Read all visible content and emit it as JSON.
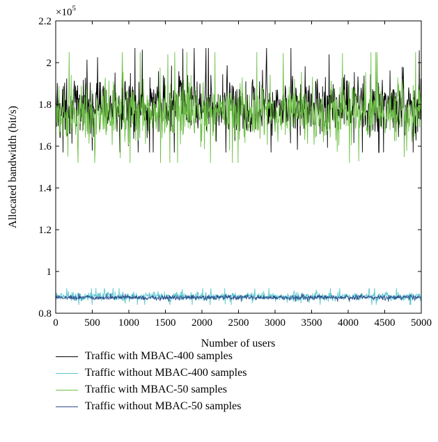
{
  "chart_data": {
    "type": "line",
    "title": "",
    "xlabel": "Number of users",
    "ylabel": "Allocated bandwidth (bit/s)",
    "y_multiplier_label": "×10",
    "y_multiplier_exponent": "5",
    "xlim": [
      0,
      5000
    ],
    "ylim": [
      0.8,
      2.2
    ],
    "x_ticks": [
      0,
      500,
      1000,
      1500,
      2000,
      2500,
      3000,
      3500,
      4000,
      4500,
      5000
    ],
    "x_tick_labels": [
      "0",
      "500",
      "1000",
      "1500",
      "2000",
      "2500",
      "3000",
      "3500",
      "4000",
      "4500",
      "5000"
    ],
    "y_ticks": [
      0.8,
      1.0,
      1.2,
      1.4,
      1.6,
      1.8,
      2.0,
      2.2
    ],
    "y_tick_labels": [
      "0.8",
      "1",
      "1.2",
      "1.4",
      "1.6",
      "1.8",
      "2",
      "2.2"
    ],
    "grid": false,
    "legend_position": "bottom",
    "series": [
      {
        "name": "Traffic with MBAC-400 samples",
        "color": "#000000",
        "mean": 1.79,
        "min": 1.57,
        "max": 2.07
      },
      {
        "name": "Traffic without MBAC-400 samples",
        "color": "#5bc8d0",
        "mean": 0.88,
        "min": 0.84,
        "max": 0.92
      },
      {
        "name": "Traffic with MBAC-50 samples",
        "color": "#6cbf45",
        "mean": 1.76,
        "min": 1.52,
        "max": 2.05
      },
      {
        "name": "Traffic without MBAC-50 samples",
        "color": "#2b4a8b",
        "mean": 0.875,
        "min": 0.855,
        "max": 0.895
      }
    ]
  }
}
